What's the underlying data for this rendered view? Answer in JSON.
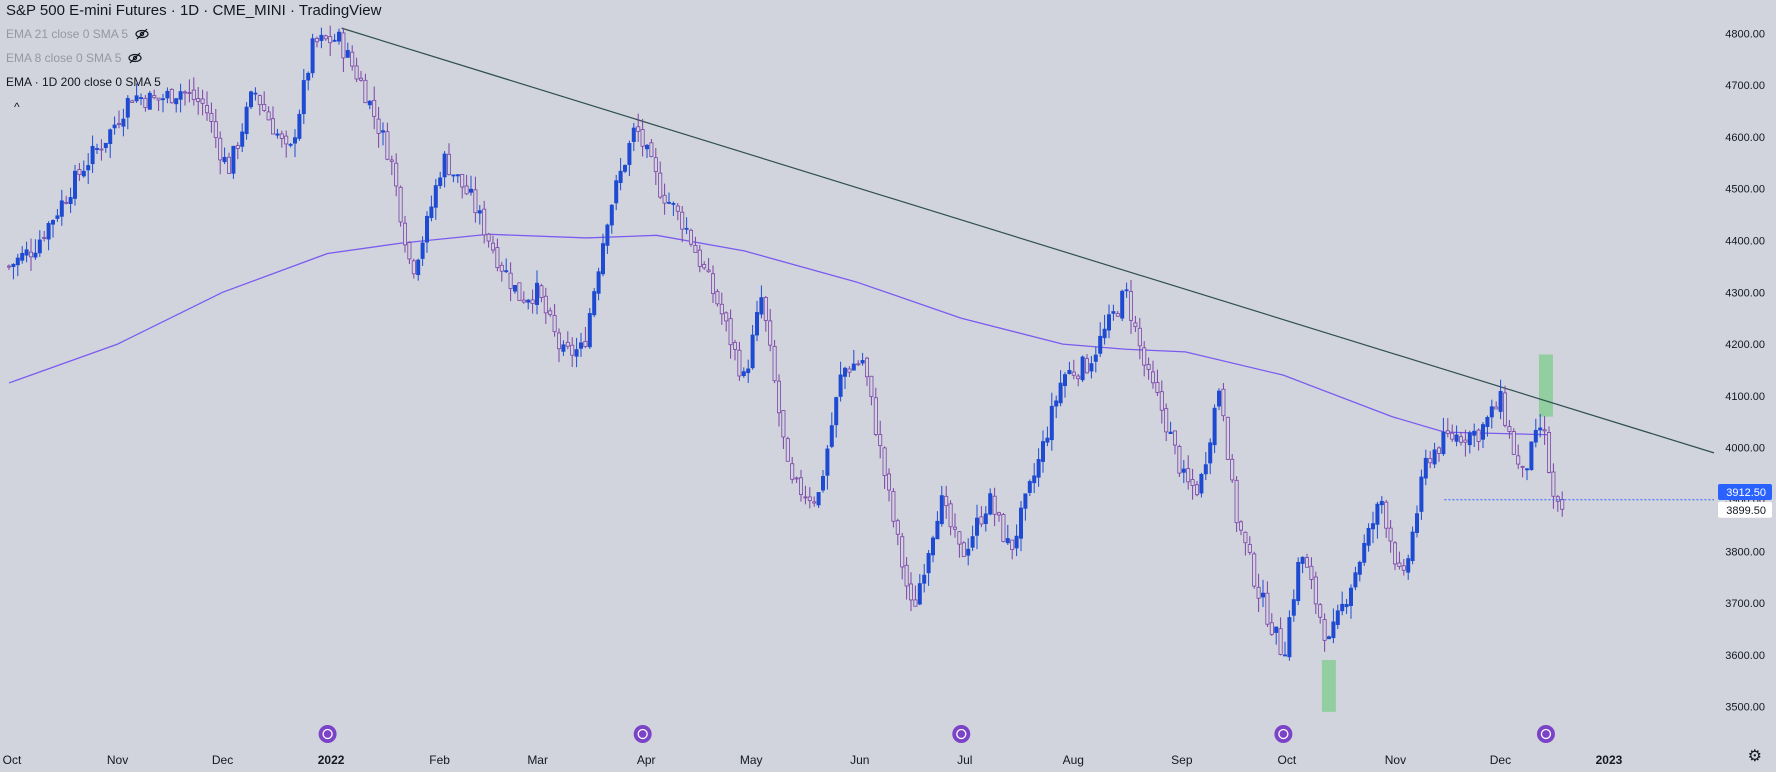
{
  "header": {
    "title": "S&P 500 E-mini Futures · 1D · CME_MINI · TradingView",
    "indicators": [
      {
        "label": "EMA 21 close 0 SMA 5",
        "hidden": true
      },
      {
        "label": "EMA 8 close 0 SMA 5",
        "hidden": true
      },
      {
        "label": "EMA · 1D 200 close 0 SMA 5",
        "hidden": false
      }
    ]
  },
  "colors": {
    "background": "#d1d4dc",
    "up_candle": "#1e4bd2",
    "down_candle": "#7b43a8",
    "ema_line": "#7b5bf0",
    "trendline": "#2f4f4f",
    "highlight": "#7ccc8c",
    "last_price_bg": "#2962ff"
  },
  "chart_data": {
    "type": "candlestick",
    "x_labels": [
      "Oct",
      "Nov",
      "Dec",
      "2022",
      "Feb",
      "Mar",
      "Apr",
      "May",
      "Jun",
      "Jul",
      "Aug",
      "Sep",
      "Oct",
      "Nov",
      "Dec",
      "2023"
    ],
    "y_ticks": [
      3500,
      3600,
      3700,
      3800,
      3900,
      4000,
      4100,
      4200,
      4300,
      4400,
      4500,
      4600,
      4700,
      4800
    ],
    "y_tick_labels": [
      "3500.00",
      "3600.00",
      "3700.00",
      "3800.00",
      "3900.00",
      "4000.00",
      "4100.00",
      "4200.00",
      "4300.00",
      "4400.00",
      "4500.00",
      "4600.00",
      "4700.00",
      "4800.00"
    ],
    "ylim": [
      3455,
      4845
    ],
    "price_path": [
      [
        "2021-10-01",
        4350
      ],
      [
        "2021-10-08",
        4385
      ],
      [
        "2021-10-15",
        4460
      ],
      [
        "2021-10-22",
        4540
      ],
      [
        "2021-10-29",
        4600
      ],
      [
        "2021-11-05",
        4680
      ],
      [
        "2021-11-12",
        4670
      ],
      [
        "2021-11-19",
        4690
      ],
      [
        "2021-11-26",
        4660
      ],
      [
        "2021-12-01",
        4560
      ],
      [
        "2021-12-03",
        4540
      ],
      [
        "2021-12-10",
        4690
      ],
      [
        "2021-12-17",
        4600
      ],
      [
        "2021-12-20",
        4560
      ],
      [
        "2021-12-27",
        4780
      ],
      [
        "2022-01-03",
        4790
      ],
      [
        "2022-01-10",
        4700
      ],
      [
        "2022-01-18",
        4560
      ],
      [
        "2022-01-24",
        4340
      ],
      [
        "2022-01-28",
        4420
      ],
      [
        "2022-02-02",
        4560
      ],
      [
        "2022-02-10",
        4480
      ],
      [
        "2022-02-18",
        4360
      ],
      [
        "2022-02-24",
        4290
      ],
      [
        "2022-03-01",
        4300
      ],
      [
        "2022-03-08",
        4180
      ],
      [
        "2022-03-14",
        4190
      ],
      [
        "2022-03-21",
        4450
      ],
      [
        "2022-03-29",
        4620
      ],
      [
        "2022-04-05",
        4500
      ],
      [
        "2022-04-12",
        4430
      ],
      [
        "2022-04-22",
        4270
      ],
      [
        "2022-04-29",
        4130
      ],
      [
        "2022-05-04",
        4290
      ],
      [
        "2022-05-12",
        3930
      ],
      [
        "2022-05-20",
        3900
      ],
      [
        "2022-05-27",
        4150
      ],
      [
        "2022-06-02",
        4170
      ],
      [
        "2022-06-10",
        3880
      ],
      [
        "2022-06-16",
        3680
      ],
      [
        "2022-06-24",
        3900
      ],
      [
        "2022-06-30",
        3790
      ],
      [
        "2022-07-08",
        3900
      ],
      [
        "2022-07-14",
        3800
      ],
      [
        "2022-07-22",
        3970
      ],
      [
        "2022-07-29",
        4140
      ],
      [
        "2022-08-05",
        4160
      ],
      [
        "2022-08-16",
        4300
      ],
      [
        "2022-08-22",
        4140
      ],
      [
        "2022-08-26",
        4080
      ],
      [
        "2022-09-02",
        3930
      ],
      [
        "2022-09-06",
        3920
      ],
      [
        "2022-09-12",
        4130
      ],
      [
        "2022-09-16",
        3880
      ],
      [
        "2022-09-23",
        3720
      ],
      [
        "2022-09-30",
        3600
      ],
      [
        "2022-10-05",
        3800
      ],
      [
        "2022-10-13",
        3620
      ],
      [
        "2022-10-21",
        3770
      ],
      [
        "2022-10-28",
        3900
      ],
      [
        "2022-11-03",
        3730
      ],
      [
        "2022-11-10",
        3980
      ],
      [
        "2022-11-16",
        4020
      ],
      [
        "2022-11-25",
        4030
      ],
      [
        "2022-12-01",
        4090
      ],
      [
        "2022-12-07",
        3940
      ],
      [
        "2022-12-13",
        4050
      ],
      [
        "2022-12-16",
        3900
      ],
      [
        "2022-12-19",
        3860
      ]
    ],
    "ema_200": [
      [
        "2021-10-01",
        4125
      ],
      [
        "2021-11-01",
        4200
      ],
      [
        "2021-12-01",
        4300
      ],
      [
        "2021-12-31",
        4375
      ],
      [
        "2022-01-21",
        4395
      ],
      [
        "2022-02-15",
        4412
      ],
      [
        "2022-03-15",
        4405
      ],
      [
        "2022-04-04",
        4410
      ],
      [
        "2022-04-29",
        4380
      ],
      [
        "2022-05-31",
        4320
      ],
      [
        "2022-06-30",
        4250
      ],
      [
        "2022-07-29",
        4200
      ],
      [
        "2022-08-16",
        4190
      ],
      [
        "2022-09-02",
        4185
      ],
      [
        "2022-09-30",
        4140
      ],
      [
        "2022-10-31",
        4060
      ],
      [
        "2022-11-15",
        4030
      ],
      [
        "2022-12-15",
        4025
      ]
    ],
    "trendline": {
      "start": [
        "2022-01-04",
        4810
      ],
      "end": [
        "2023-01-31",
        3990
      ]
    },
    "last_price": "3912.50",
    "prev_close": "3899.50",
    "dotted_level": 3899.5,
    "highlights": [
      {
        "from": "2022-10-11",
        "to": "2022-10-15",
        "low": 3490,
        "high": 3590
      },
      {
        "from": "2022-12-12",
        "to": "2022-12-16",
        "low": 4060,
        "high": 4180
      }
    ],
    "event_markers": [
      "2021-12-31",
      "2022-03-31",
      "2022-06-30",
      "2022-09-30",
      "2022-12-14"
    ]
  }
}
